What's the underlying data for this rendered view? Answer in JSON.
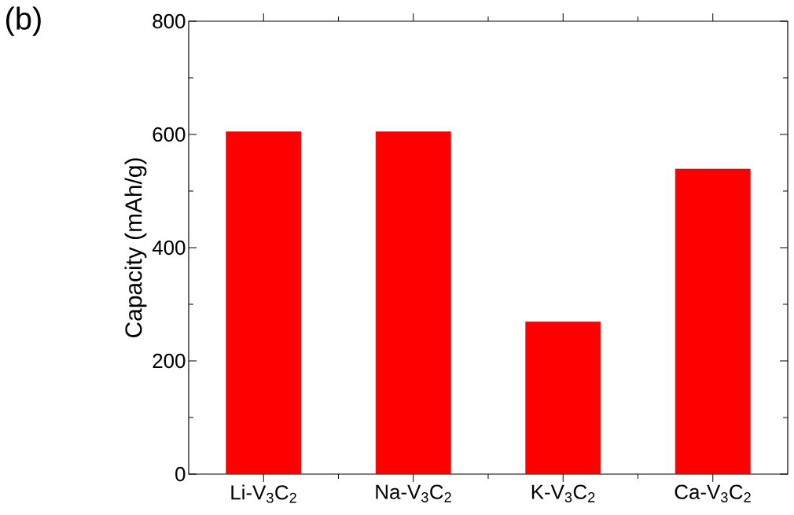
{
  "chart_data": {
    "type": "bar",
    "ylabel": "Capacity (mAh/g)",
    "annotations": [
      "(b)"
    ],
    "categories": [
      "Li-V$_{3}$C$_{2}$",
      "Na-V$_{3}$C$_{2}$",
      "K-V$_{3}$C$_{2}$",
      "Ca-V$_{3}$C$_{2}$"
    ],
    "values": [
      605,
      605,
      269,
      539
    ],
    "color": "#ff0000",
    "ylim": [
      0,
      800
    ],
    "yticks": [
      0,
      200,
      400,
      600,
      800
    ],
    "grid": false
  }
}
